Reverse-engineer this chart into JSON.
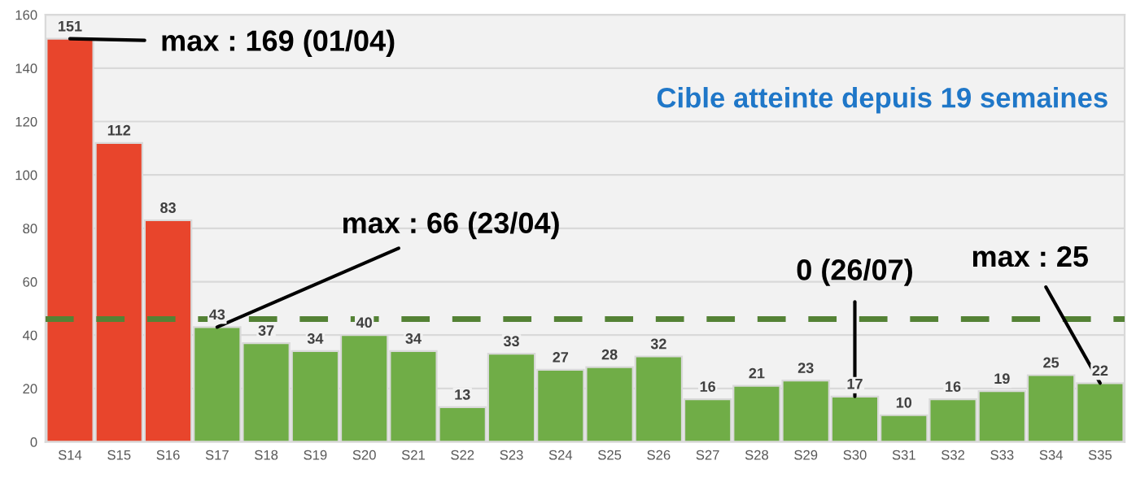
{
  "chart_data": {
    "type": "bar",
    "categories": [
      "S14",
      "S15",
      "S16",
      "S17",
      "S18",
      "S19",
      "S20",
      "S21",
      "S22",
      "S23",
      "S24",
      "S25",
      "S26",
      "S27",
      "S28",
      "S29",
      "S30",
      "S31",
      "S32",
      "S33",
      "S34",
      "S35"
    ],
    "values": [
      151,
      112,
      83,
      43,
      37,
      34,
      40,
      34,
      13,
      33,
      27,
      28,
      32,
      16,
      21,
      23,
      17,
      10,
      16,
      19,
      25,
      22
    ],
    "colors": [
      "#e8452c",
      "#e8452c",
      "#e8452c",
      "#70ad47",
      "#70ad47",
      "#70ad47",
      "#70ad47",
      "#70ad47",
      "#70ad47",
      "#70ad47",
      "#70ad47",
      "#70ad47",
      "#70ad47",
      "#70ad47",
      "#70ad47",
      "#70ad47",
      "#70ad47",
      "#70ad47",
      "#70ad47",
      "#70ad47",
      "#70ad47",
      "#70ad47"
    ],
    "ylim": [
      0,
      160
    ],
    "yticks": [
      0,
      20,
      40,
      60,
      80,
      100,
      120,
      140,
      160
    ],
    "grid": "y",
    "data_labels": true,
    "ref_lines": [
      {
        "axis": "y",
        "value": 46,
        "color": "#548235",
        "line_style": "dashed"
      }
    ],
    "annotations": [
      {
        "text": "max : 169 (01/04)",
        "x": "S14",
        "y": 151
      },
      {
        "text": "max : 66 (23/04)",
        "x": "S17",
        "y": 43
      },
      {
        "text": "0 (26/07)",
        "x": "S30",
        "y": 17
      },
      {
        "text": "max : 25",
        "x": "S35",
        "y": 22
      },
      "Cible atteinte depuis 19 semaines"
    ]
  }
}
